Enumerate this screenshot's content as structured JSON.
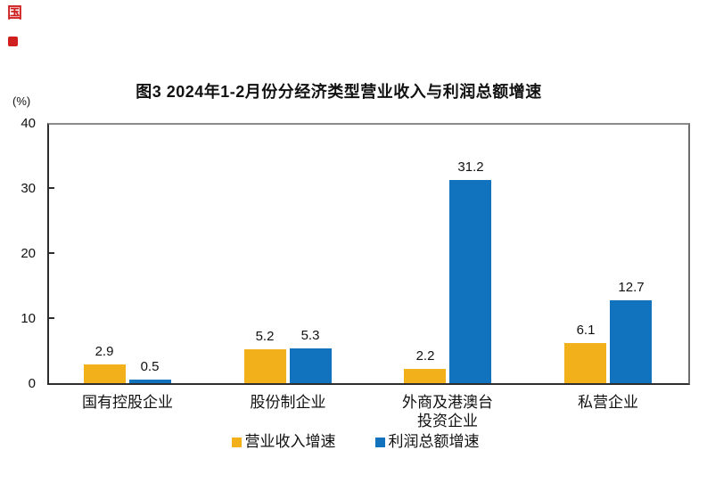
{
  "decorations": {
    "red_glyph": "国"
  },
  "chart_data": {
    "type": "bar",
    "title": "图3 2024年1-2月份分经济类型营业收入与利润总额增速",
    "y_unit_label": "(%)",
    "categories": [
      "国有控股企业",
      "股份制企业",
      "外商及港澳台投资企业",
      "私营企业"
    ],
    "category_display_lines": [
      [
        "国有控股企业"
      ],
      [
        "股份制企业"
      ],
      [
        "外商及港澳台",
        "投资企业"
      ],
      [
        "私营企业"
      ]
    ],
    "series": [
      {
        "name": "营业收入增速",
        "color": "#F2B01B",
        "values": [
          2.9,
          5.2,
          2.2,
          6.1
        ]
      },
      {
        "name": "利润总额增速",
        "color": "#1173BD",
        "values": [
          0.5,
          5.3,
          31.2,
          12.7
        ]
      }
    ],
    "ylim": [
      0,
      40
    ],
    "yticks": [
      0,
      10,
      20,
      30,
      40
    ],
    "grid": false,
    "legend_position": "bottom",
    "xlabel": "",
    "ylabel": "(%)"
  }
}
